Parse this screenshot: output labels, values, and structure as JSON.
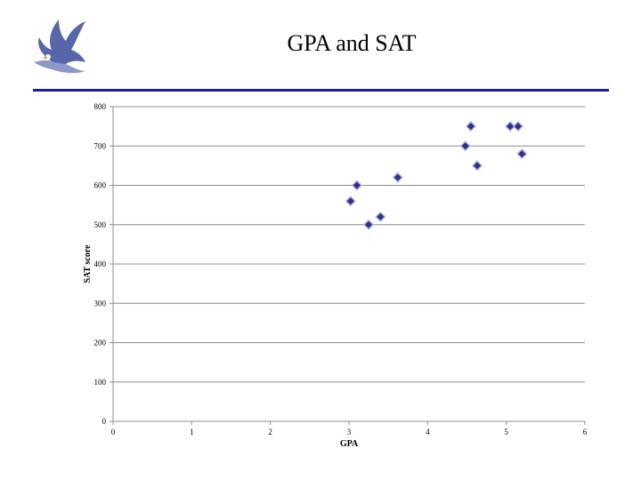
{
  "slide": {
    "title": "GPA and SAT"
  },
  "colors": {
    "rule": "#1f1f9a",
    "marker_fill": "#2e2e8c",
    "marker_stroke": "#aab0d8",
    "grid": "#8c8c8c",
    "logo": "#3a4a9a"
  },
  "icons": {
    "logo": "eagle-logo-icon"
  },
  "chart_data": {
    "type": "scatter",
    "title": "",
    "xlabel": "GPA",
    "ylabel": "SAT score",
    "xlim": [
      0,
      6
    ],
    "ylim": [
      0,
      800
    ],
    "x_ticks": [
      0,
      1,
      2,
      3,
      4,
      5,
      6
    ],
    "y_ticks": [
      0,
      100,
      200,
      300,
      400,
      500,
      600,
      700,
      800
    ],
    "grid": "horizontal",
    "marker": "diamond",
    "series": [
      {
        "points": [
          {
            "x": 3.02,
            "y": 560
          },
          {
            "x": 3.1,
            "y": 600
          },
          {
            "x": 3.25,
            "y": 500
          },
          {
            "x": 3.4,
            "y": 520
          },
          {
            "x": 3.62,
            "y": 620
          },
          {
            "x": 4.48,
            "y": 700
          },
          {
            "x": 4.55,
            "y": 750
          },
          {
            "x": 4.63,
            "y": 650
          },
          {
            "x": 5.05,
            "y": 750
          },
          {
            "x": 5.15,
            "y": 750
          },
          {
            "x": 5.2,
            "y": 680
          }
        ]
      }
    ]
  }
}
